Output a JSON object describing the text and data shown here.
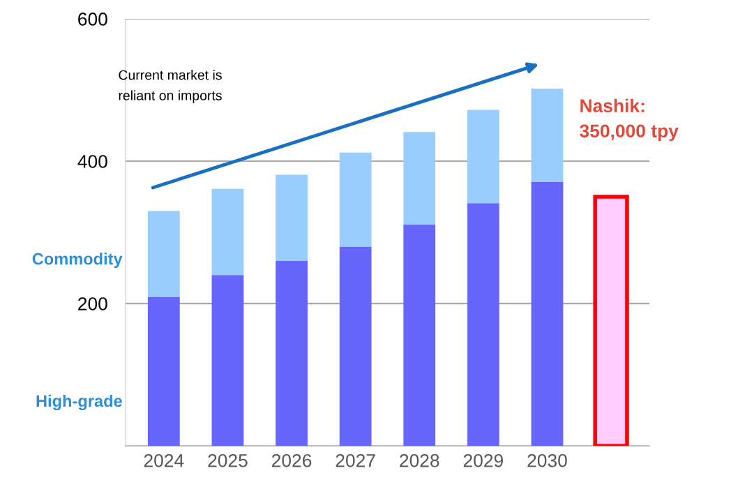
{
  "chart_data": {
    "type": "bar",
    "stacked": true,
    "categories": [
      "2024",
      "2025",
      "2026",
      "2027",
      "2028",
      "2029",
      "2030",
      null
    ],
    "series": [
      {
        "name": "High-grade",
        "color": "#6666ff",
        "values": [
          209,
          240,
          260,
          280,
          311,
          341,
          371,
          null
        ]
      },
      {
        "name": "Commodity",
        "color": "#99ccff",
        "values": [
          121,
          121,
          121,
          132,
          130,
          131,
          131,
          null
        ]
      },
      {
        "color": "#ffccff",
        "values": [
          null,
          null,
          null,
          null,
          null,
          null,
          null,
          350
        ]
      }
    ],
    "ylim": [
      0,
      600
    ],
    "yticks": [
      200,
      400,
      600
    ],
    "grid": "y",
    "annotations": [
      "Current market is\nreliant on imports",
      "Nashik:\n350,000 tpy"
    ]
  }
}
